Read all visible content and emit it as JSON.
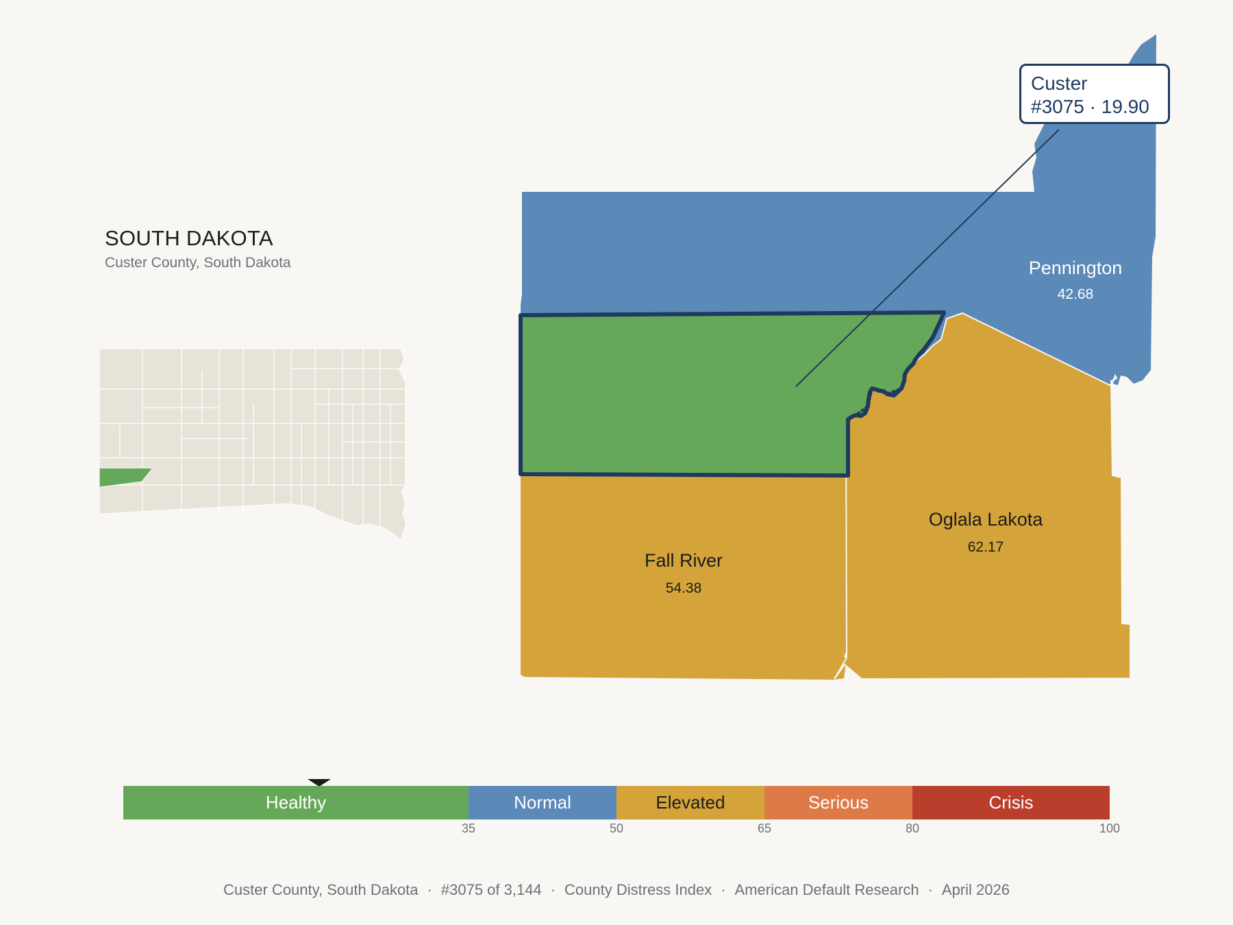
{
  "header": {
    "state": "SOUTH DAKOTA",
    "subtitle": "Custer County, South Dakota"
  },
  "colors": {
    "healthy": "#66a85a",
    "normal": "#5b89b8",
    "elevated": "#d4a43a",
    "serious": "#de7a48",
    "crisis": "#ba3e2c",
    "highlight_outline": "#1e3a5f",
    "locator_fill": "#e8e3d8",
    "background": "#f9f7f3"
  },
  "counties": [
    {
      "name": "Pennington",
      "value": "42.68",
      "category": "Normal"
    },
    {
      "name": "Custer",
      "value": "19.90",
      "category": "Healthy",
      "highlighted": true
    },
    {
      "name": "Fall River",
      "value": "54.38",
      "category": "Elevated"
    },
    {
      "name": "Oglala Lakota",
      "value": "62.17",
      "category": "Elevated"
    }
  ],
  "callout": {
    "name": "Custer",
    "detail": "#3075 · 19.90"
  },
  "scale": {
    "marker_value": 19.9,
    "segments": [
      {
        "label": "Healthy",
        "from": 0,
        "to": 35
      },
      {
        "label": "Normal",
        "from": 35,
        "to": 50
      },
      {
        "label": "Elevated",
        "from": 50,
        "to": 65
      },
      {
        "label": "Serious",
        "from": 65,
        "to": 80
      },
      {
        "label": "Crisis",
        "from": 80,
        "to": 100
      }
    ],
    "ticks": [
      "35",
      "50",
      "65",
      "80",
      "100"
    ]
  },
  "footer": {
    "location": "Custer County, South Dakota",
    "rank": "#3075 of 3,144",
    "index": "County Distress Index",
    "source": "American Default Research",
    "date": "April 2026",
    "separator": "·"
  }
}
